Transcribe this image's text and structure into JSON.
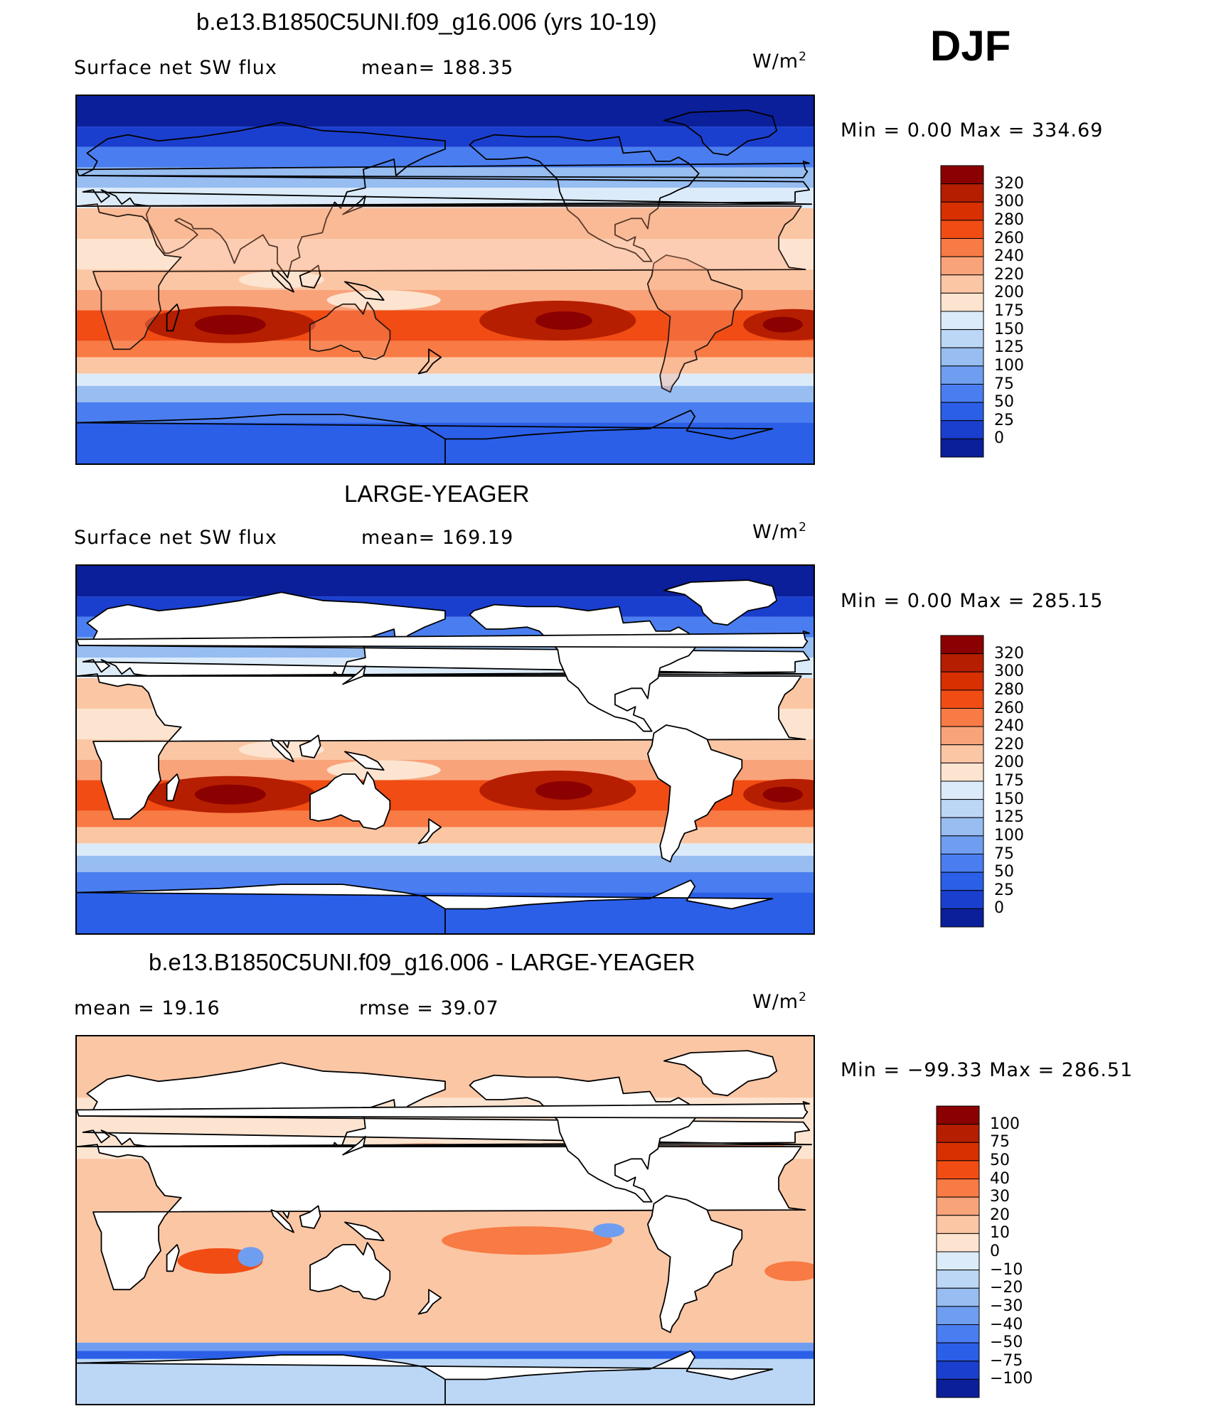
{
  "season": "DJF",
  "units_base": "W/m",
  "units_exp": "2",
  "panels": [
    {
      "title": "b.e13.B1850C5UNI.f09_g16.006 (yrs 10-19)",
      "left_label": "Surface net SW flux",
      "right_label": "mean=  188.35",
      "minmax": "Min  =     0.00  Max  =  334.69",
      "colorbar_levels": [
        "320",
        "300",
        "280",
        "260",
        "240",
        "220",
        "200",
        "175",
        "150",
        "125",
        "100",
        "75",
        "50",
        "25",
        "0"
      ],
      "colorbar_colors": [
        "#8b0000",
        "#b51e00",
        "#d83000",
        "#f04c14",
        "#f87a44",
        "#f9a37a",
        "#fbc6a4",
        "#fde4d0",
        "#dcebfa",
        "#bcd7f6",
        "#97bdf1",
        "#6f9ef0",
        "#4a7ef0",
        "#2b5fe8",
        "#1a3fcf",
        "#0b1f9a"
      ],
      "map_kind": "model"
    },
    {
      "title": "LARGE-YEAGER",
      "left_label": "Surface net SW flux",
      "right_label": "mean=  169.19",
      "minmax": "Min  =     0.00  Max  =  285.15",
      "colorbar_levels": [
        "320",
        "300",
        "280",
        "260",
        "240",
        "220",
        "200",
        "175",
        "150",
        "125",
        "100",
        "75",
        "50",
        "25",
        "0"
      ],
      "colorbar_colors": [
        "#8b0000",
        "#b51e00",
        "#d83000",
        "#f04c14",
        "#f87a44",
        "#f9a37a",
        "#fbc6a4",
        "#fde4d0",
        "#dcebfa",
        "#bcd7f6",
        "#97bdf1",
        "#6f9ef0",
        "#4a7ef0",
        "#2b5fe8",
        "#1a3fcf",
        "#0b1f9a"
      ],
      "map_kind": "obs"
    },
    {
      "title": "b.e13.B1850C5UNI.f09_g16.006 - LARGE-YEAGER",
      "left_label": "mean  =    19.16",
      "right_label": "rmse  =    39.07",
      "minmax": "Min  =  −99.33  Max  =  286.51",
      "colorbar_levels": [
        "100",
        "75",
        "50",
        "40",
        "30",
        "20",
        "10",
        "0",
        "−10",
        "−20",
        "−30",
        "−40",
        "−50",
        "−75",
        "−100"
      ],
      "colorbar_colors": [
        "#8b0000",
        "#b51e00",
        "#d83000",
        "#f04c14",
        "#f87a44",
        "#f9a37a",
        "#fbc6a4",
        "#fde4d0",
        "#dcebfa",
        "#bcd7f6",
        "#97bdf1",
        "#6f9ef0",
        "#4a7ef0",
        "#2b5fe8",
        "#1a3fcf",
        "#0b1f9a"
      ],
      "map_kind": "diff"
    }
  ]
}
